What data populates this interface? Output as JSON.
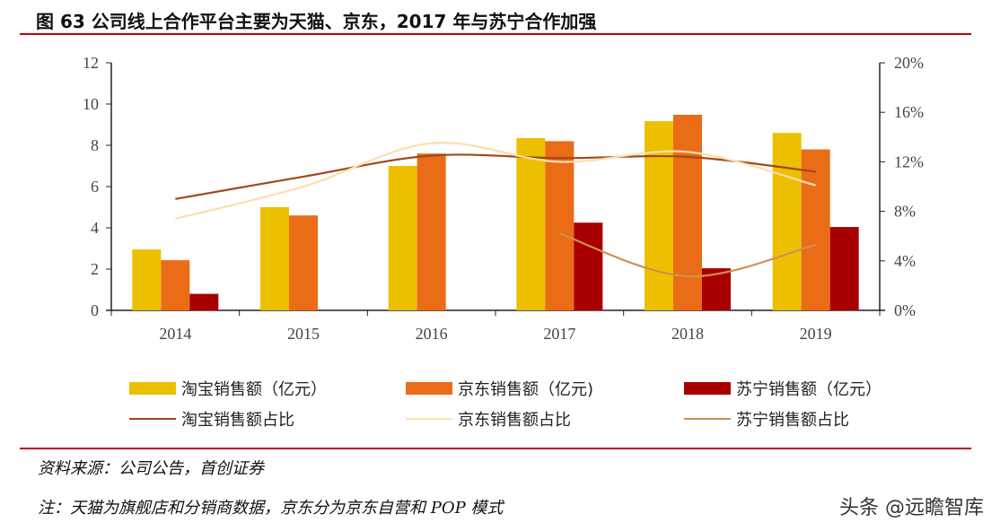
{
  "title": "图 63 公司线上合作平台主要为天猫、京东，2017 年与苏宁合作加强",
  "source": "资料来源：公司公告，首创证券",
  "note": "注：天猫为旗舰店和分销商数据，京东分为京东自营和 POP 模式",
  "watermark": "头条 @远瞻智库",
  "chart_data": {
    "type": "bar+line",
    "categories": [
      "2014",
      "2015",
      "2016",
      "2017",
      "2018",
      "2019"
    ],
    "y_left": {
      "range": [
        0,
        12
      ],
      "ticks": [
        "0",
        "2",
        "4",
        "6",
        "8",
        "10",
        "12"
      ]
    },
    "y_right": {
      "range": [
        0,
        20
      ],
      "ticks": [
        "0%",
        "4%",
        "8%",
        "12%",
        "16%",
        "20%"
      ]
    },
    "bar_series": [
      {
        "name": "淘宝销售额（亿元）",
        "color": "#ecc000",
        "values": [
          2.95,
          5.0,
          7.0,
          8.35,
          9.17,
          8.6
        ]
      },
      {
        "name": "京东销售额（亿元)",
        "color": "#ea6c16",
        "values": [
          2.43,
          4.6,
          7.6,
          8.2,
          9.48,
          7.8
        ]
      },
      {
        "name": "苏宁销售额（亿元）",
        "color": "#a80000",
        "values": [
          0.8,
          null,
          null,
          4.25,
          2.04,
          4.04
        ]
      }
    ],
    "line_series": [
      {
        "name": "淘宝销售额占比",
        "color": "#a0481a",
        "values": [
          9.0,
          10.8,
          12.5,
          12.3,
          12.4,
          11.2
        ]
      },
      {
        "name": "京东销售额占比",
        "color": "#f9dfae",
        "values": [
          7.4,
          10.0,
          13.5,
          12.0,
          12.8,
          10.1
        ]
      },
      {
        "name": "苏宁销售额占比",
        "color": "#cf9052",
        "values": [
          null,
          null,
          null,
          6.2,
          2.75,
          5.3
        ]
      }
    ],
    "legend_position": "bottom",
    "grid": false
  }
}
